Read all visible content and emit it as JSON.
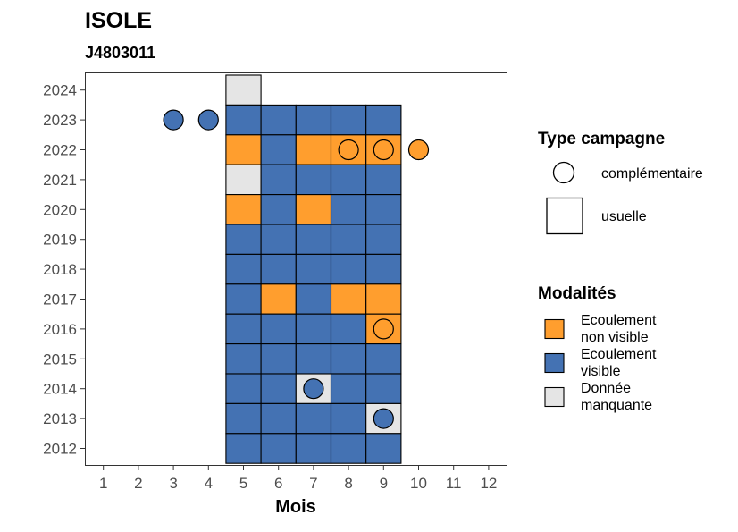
{
  "chart_data": {
    "type": "heatmap",
    "title": "ISOLE",
    "subtitle": "J4803011",
    "xlabel": "Mois",
    "ylabel": "",
    "x_ticks": [
      "1",
      "2",
      "3",
      "4",
      "5",
      "6",
      "7",
      "8",
      "9",
      "10",
      "11",
      "12"
    ],
    "y_ticks": [
      "2012",
      "2013",
      "2014",
      "2015",
      "2016",
      "2017",
      "2018",
      "2019",
      "2020",
      "2021",
      "2022",
      "2023",
      "2024"
    ],
    "xlim": [
      0.5,
      12.5
    ],
    "ylim": [
      2011.5,
      2024.5
    ],
    "grid": false,
    "categories": {
      "ENV": {
        "label": "Ecoulement non visible",
        "color": "#FF9E2E"
      },
      "EV": {
        "label": "Ecoulement visible",
        "color": "#4472B3"
      },
      "NA": {
        "label": "Donnée manquante",
        "color": "#E5E5E5"
      }
    },
    "cells": [
      {
        "year": 2024,
        "month": 5,
        "value": "NA"
      },
      {
        "year": 2023,
        "month": 5,
        "value": "EV"
      },
      {
        "year": 2023,
        "month": 6,
        "value": "EV"
      },
      {
        "year": 2023,
        "month": 7,
        "value": "EV"
      },
      {
        "year": 2023,
        "month": 8,
        "value": "EV"
      },
      {
        "year": 2023,
        "month": 9,
        "value": "EV"
      },
      {
        "year": 2022,
        "month": 5,
        "value": "ENV"
      },
      {
        "year": 2022,
        "month": 6,
        "value": "EV"
      },
      {
        "year": 2022,
        "month": 7,
        "value": "ENV"
      },
      {
        "year": 2022,
        "month": 8,
        "value": "ENV"
      },
      {
        "year": 2022,
        "month": 9,
        "value": "ENV"
      },
      {
        "year": 2021,
        "month": 5,
        "value": "NA"
      },
      {
        "year": 2021,
        "month": 6,
        "value": "EV"
      },
      {
        "year": 2021,
        "month": 7,
        "value": "EV"
      },
      {
        "year": 2021,
        "month": 8,
        "value": "EV"
      },
      {
        "year": 2021,
        "month": 9,
        "value": "EV"
      },
      {
        "year": 2020,
        "month": 5,
        "value": "ENV"
      },
      {
        "year": 2020,
        "month": 6,
        "value": "EV"
      },
      {
        "year": 2020,
        "month": 7,
        "value": "ENV"
      },
      {
        "year": 2020,
        "month": 8,
        "value": "EV"
      },
      {
        "year": 2020,
        "month": 9,
        "value": "EV"
      },
      {
        "year": 2019,
        "month": 5,
        "value": "EV"
      },
      {
        "year": 2019,
        "month": 6,
        "value": "EV"
      },
      {
        "year": 2019,
        "month": 7,
        "value": "EV"
      },
      {
        "year": 2019,
        "month": 8,
        "value": "EV"
      },
      {
        "year": 2019,
        "month": 9,
        "value": "EV"
      },
      {
        "year": 2018,
        "month": 5,
        "value": "EV"
      },
      {
        "year": 2018,
        "month": 6,
        "value": "EV"
      },
      {
        "year": 2018,
        "month": 7,
        "value": "EV"
      },
      {
        "year": 2018,
        "month": 8,
        "value": "EV"
      },
      {
        "year": 2018,
        "month": 9,
        "value": "EV"
      },
      {
        "year": 2017,
        "month": 5,
        "value": "EV"
      },
      {
        "year": 2017,
        "month": 6,
        "value": "ENV"
      },
      {
        "year": 2017,
        "month": 7,
        "value": "EV"
      },
      {
        "year": 2017,
        "month": 8,
        "value": "ENV"
      },
      {
        "year": 2017,
        "month": 9,
        "value": "ENV"
      },
      {
        "year": 2016,
        "month": 5,
        "value": "EV"
      },
      {
        "year": 2016,
        "month": 6,
        "value": "EV"
      },
      {
        "year": 2016,
        "month": 7,
        "value": "EV"
      },
      {
        "year": 2016,
        "month": 8,
        "value": "EV"
      },
      {
        "year": 2016,
        "month": 9,
        "value": "ENV"
      },
      {
        "year": 2015,
        "month": 5,
        "value": "EV"
      },
      {
        "year": 2015,
        "month": 6,
        "value": "EV"
      },
      {
        "year": 2015,
        "month": 7,
        "value": "EV"
      },
      {
        "year": 2015,
        "month": 8,
        "value": "EV"
      },
      {
        "year": 2015,
        "month": 9,
        "value": "EV"
      },
      {
        "year": 2014,
        "month": 5,
        "value": "EV"
      },
      {
        "year": 2014,
        "month": 6,
        "value": "EV"
      },
      {
        "year": 2014,
        "month": 7,
        "value": "NA"
      },
      {
        "year": 2014,
        "month": 8,
        "value": "EV"
      },
      {
        "year": 2014,
        "month": 9,
        "value": "EV"
      },
      {
        "year": 2013,
        "month": 5,
        "value": "EV"
      },
      {
        "year": 2013,
        "month": 6,
        "value": "EV"
      },
      {
        "year": 2013,
        "month": 7,
        "value": "EV"
      },
      {
        "year": 2013,
        "month": 8,
        "value": "EV"
      },
      {
        "year": 2013,
        "month": 9,
        "value": "NA"
      },
      {
        "year": 2012,
        "month": 5,
        "value": "EV"
      },
      {
        "year": 2012,
        "month": 6,
        "value": "EV"
      },
      {
        "year": 2012,
        "month": 7,
        "value": "EV"
      },
      {
        "year": 2012,
        "month": 8,
        "value": "EV"
      },
      {
        "year": 2012,
        "month": 9,
        "value": "EV"
      }
    ],
    "points": [
      {
        "year": 2023,
        "month": 3,
        "value": "EV"
      },
      {
        "year": 2023,
        "month": 4,
        "value": "EV"
      },
      {
        "year": 2022,
        "month": 8,
        "value": "ENV"
      },
      {
        "year": 2022,
        "month": 9,
        "value": "ENV"
      },
      {
        "year": 2022,
        "month": 10,
        "value": "ENV"
      },
      {
        "year": 2016,
        "month": 9,
        "value": "ENV"
      },
      {
        "year": 2014,
        "month": 7,
        "value": "EV"
      },
      {
        "year": 2013,
        "month": 9,
        "value": "EV"
      }
    ],
    "legend": {
      "placement": "right",
      "type_title": "Type campagne",
      "type_items": [
        {
          "shape": "circle",
          "label": "complémentaire"
        },
        {
          "shape": "square",
          "label": "usuelle"
        }
      ],
      "mod_title": "Modalités",
      "mod_items": [
        {
          "key": "ENV",
          "lines": [
            "Ecoulement",
            "non visible"
          ]
        },
        {
          "key": "EV",
          "lines": [
            "Ecoulement",
            "visible"
          ]
        },
        {
          "key": "NA",
          "lines": [
            "Donnée",
            "manquante"
          ]
        }
      ]
    }
  }
}
